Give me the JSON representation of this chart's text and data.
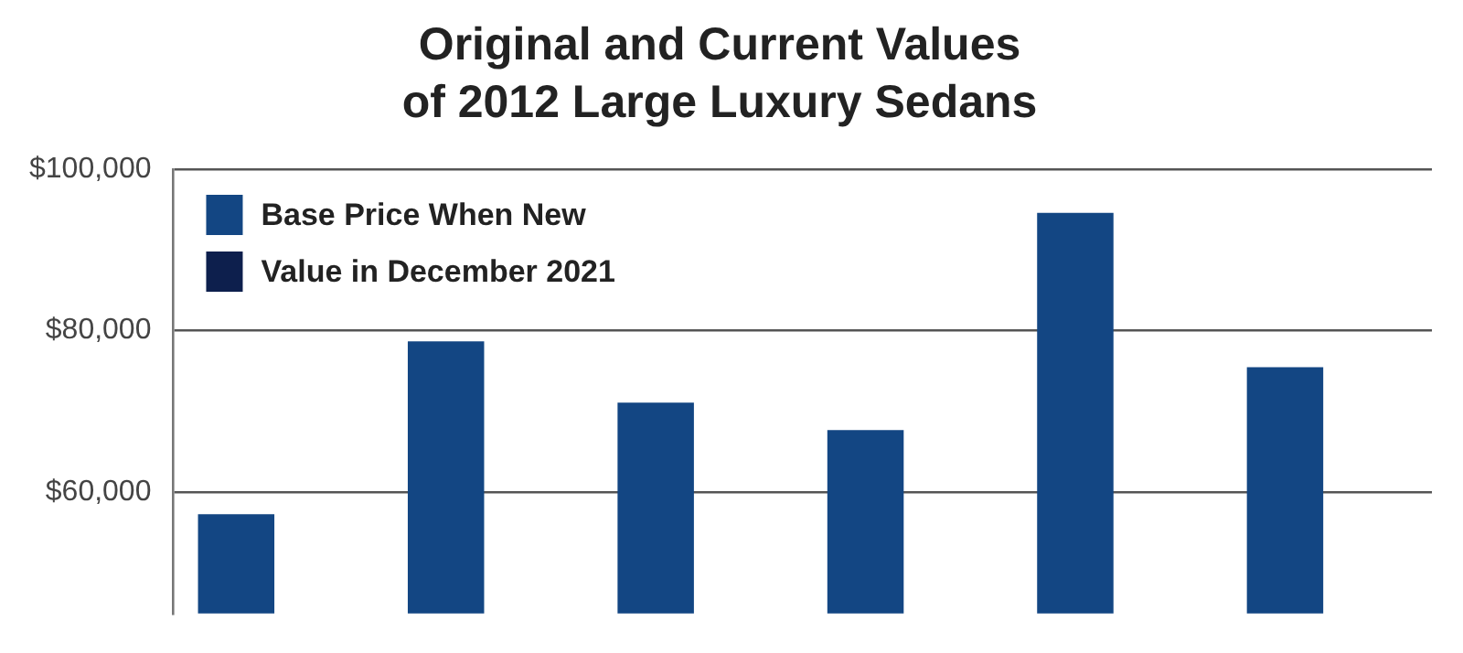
{
  "chart_data": {
    "type": "bar",
    "title": "Original and Current Values\nof 2012 Large Luxury Sedans",
    "categories": [
      null,
      null,
      null,
      null,
      null,
      null
    ],
    "series": [
      {
        "name": "Base Price When New",
        "color": "#134683",
        "values": [
          57300,
          78700,
          71100,
          67700,
          94600,
          75500
        ]
      },
      {
        "name": "Value in December 2021",
        "color": "#0d1f4d",
        "values": [
          null,
          null,
          null,
          null,
          null,
          null
        ]
      }
    ],
    "ylim": [
      45000,
      100000
    ],
    "yticks": [
      {
        "value": 60000,
        "label": "$60,000"
      },
      {
        "value": 80000,
        "label": "$80,000"
      },
      {
        "value": 100000,
        "label": "$100,000"
      }
    ],
    "grid": "y",
    "legend": "top left",
    "tick_labels": "y"
  }
}
